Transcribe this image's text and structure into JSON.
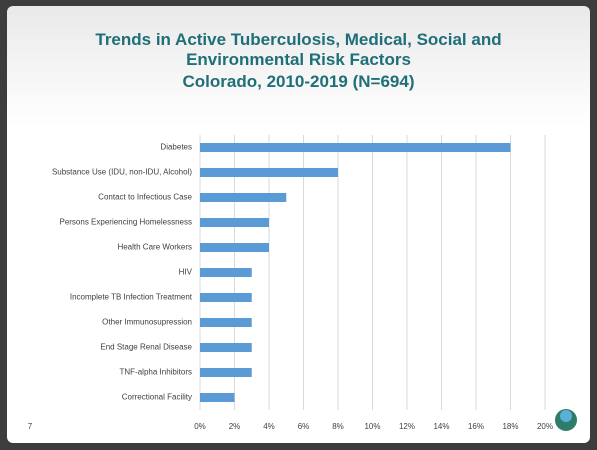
{
  "chart_data": {
    "type": "barh",
    "title": "Trends in Active Tuberculosis, Medical, Social and Environmental Risk Factors",
    "subtitle": "Colorado, 2010-2019 (N=694)",
    "page_number": "7",
    "categories": [
      "Diabetes",
      "Substance Use (IDU, non-IDU, Alcohol)",
      "Contact to Infectious Case",
      "Persons Experiencing Homelessness",
      "Health Care Workers",
      "HIV",
      "Incomplete TB Infection Treatment",
      "Other Immunosupression",
      "End Stage Renal Disease",
      "TNF-alpha Inhibitors",
      "Correctional Facility"
    ],
    "values": [
      18,
      8,
      5,
      4,
      4,
      3,
      3,
      3,
      3,
      3,
      2
    ],
    "color": "#5b9bd5",
    "xlim": [
      0,
      20
    ],
    "xticks": [
      {
        "value": 0,
        "label": "0%"
      },
      {
        "value": 2,
        "label": "2%"
      },
      {
        "value": 4,
        "label": "4%"
      },
      {
        "value": 6,
        "label": "6%"
      },
      {
        "value": 8,
        "label": "8%"
      },
      {
        "value": 10,
        "label": "10%"
      },
      {
        "value": 12,
        "label": "12%"
      },
      {
        "value": 14,
        "label": "14%"
      },
      {
        "value": 16,
        "label": "16%"
      },
      {
        "value": 18,
        "label": "18%"
      },
      {
        "value": 20,
        "label": "20%"
      }
    ],
    "grid": true
  }
}
